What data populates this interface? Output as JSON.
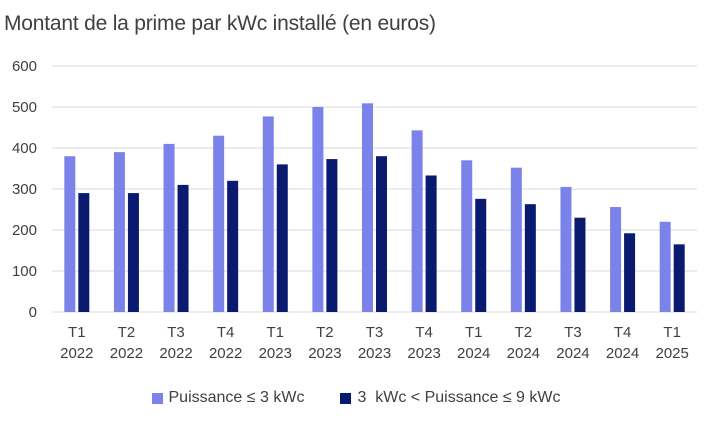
{
  "chart_data": {
    "type": "bar",
    "title": "Montant de la prime par kWc installé (en euros)",
    "xlabel": "",
    "ylabel": "",
    "ylim": [
      0,
      600
    ],
    "yticks": [
      "0",
      "100",
      "200",
      "300",
      "400",
      "500",
      "600"
    ],
    "grid": true,
    "legend_position": "bottom",
    "categories": [
      [
        "T1",
        "2022"
      ],
      [
        "T2",
        "2022"
      ],
      [
        "T3",
        "2022"
      ],
      [
        "T4",
        "2022"
      ],
      [
        "T1",
        "2023"
      ],
      [
        "T2",
        "2023"
      ],
      [
        "T3",
        "2023"
      ],
      [
        "T4",
        "2023"
      ],
      [
        "T1",
        "2024"
      ],
      [
        "T2",
        "2024"
      ],
      [
        "T3",
        "2024"
      ],
      [
        "T4",
        "2024"
      ],
      [
        "T1",
        "2025"
      ]
    ],
    "series": [
      {
        "name": "Puissance ≤ 3 kWc",
        "color": "#7b83eb",
        "values": [
          380,
          390,
          410,
          430,
          477,
          500,
          509,
          443,
          370,
          352,
          305,
          256,
          220
        ]
      },
      {
        "name": "3  kWc < Puissance ≤ 9 kWc",
        "color": "#0a1a6e",
        "values": [
          290,
          290,
          310,
          320,
          360,
          373,
          380,
          333,
          276,
          263,
          230,
          192,
          165
        ]
      }
    ]
  }
}
